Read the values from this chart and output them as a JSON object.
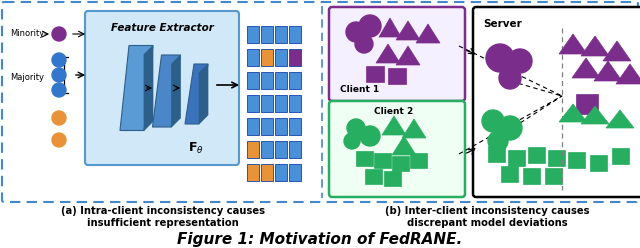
{
  "title": "Figure 1: Motivation of FedRANE.",
  "caption_a": "(a) Intra-client inconsistency causes\ninsufficient representation",
  "caption_b": "(b) Inter-client inconsistency causes\ndiscrepant model deviations",
  "purple": "#7B2D8B",
  "green": "#27AE60",
  "blue_nn": "#4A90D9",
  "blue_nn_dark": "#2C6FAC",
  "orange": "#E8933A",
  "border_blue": "#4488CC"
}
